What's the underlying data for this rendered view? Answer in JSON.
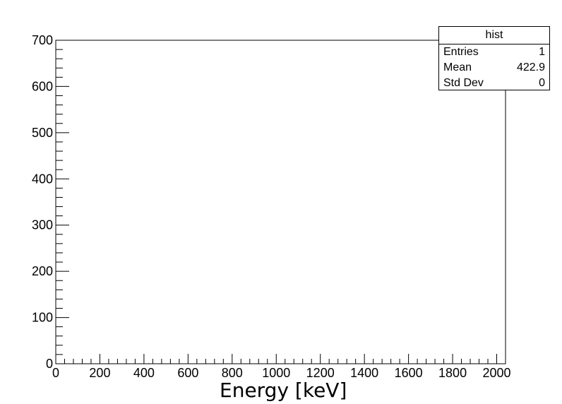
{
  "chart_data": {
    "type": "bar",
    "title": "",
    "xlabel": "Energy [keV]",
    "ylabel": "",
    "xlim": [
      0,
      2040
    ],
    "ylim": [
      0,
      700
    ],
    "x_ticks": [
      0,
      200,
      400,
      600,
      800,
      1000,
      1200,
      1400,
      1600,
      1800,
      2000
    ],
    "y_ticks": [
      0,
      100,
      200,
      300,
      400,
      500,
      600,
      700
    ],
    "series": [
      {
        "x": [
          422.9
        ],
        "values": [
          1
        ]
      }
    ],
    "grid": false,
    "legend": "none"
  },
  "stats": {
    "title": "hist",
    "rows": [
      {
        "label": "Entries",
        "value": "1"
      },
      {
        "label": "Mean",
        "value": "422.9"
      },
      {
        "label": "Std Dev",
        "value": "0"
      }
    ]
  },
  "colors": {
    "axis": "#000000",
    "background": "#ffffff"
  }
}
